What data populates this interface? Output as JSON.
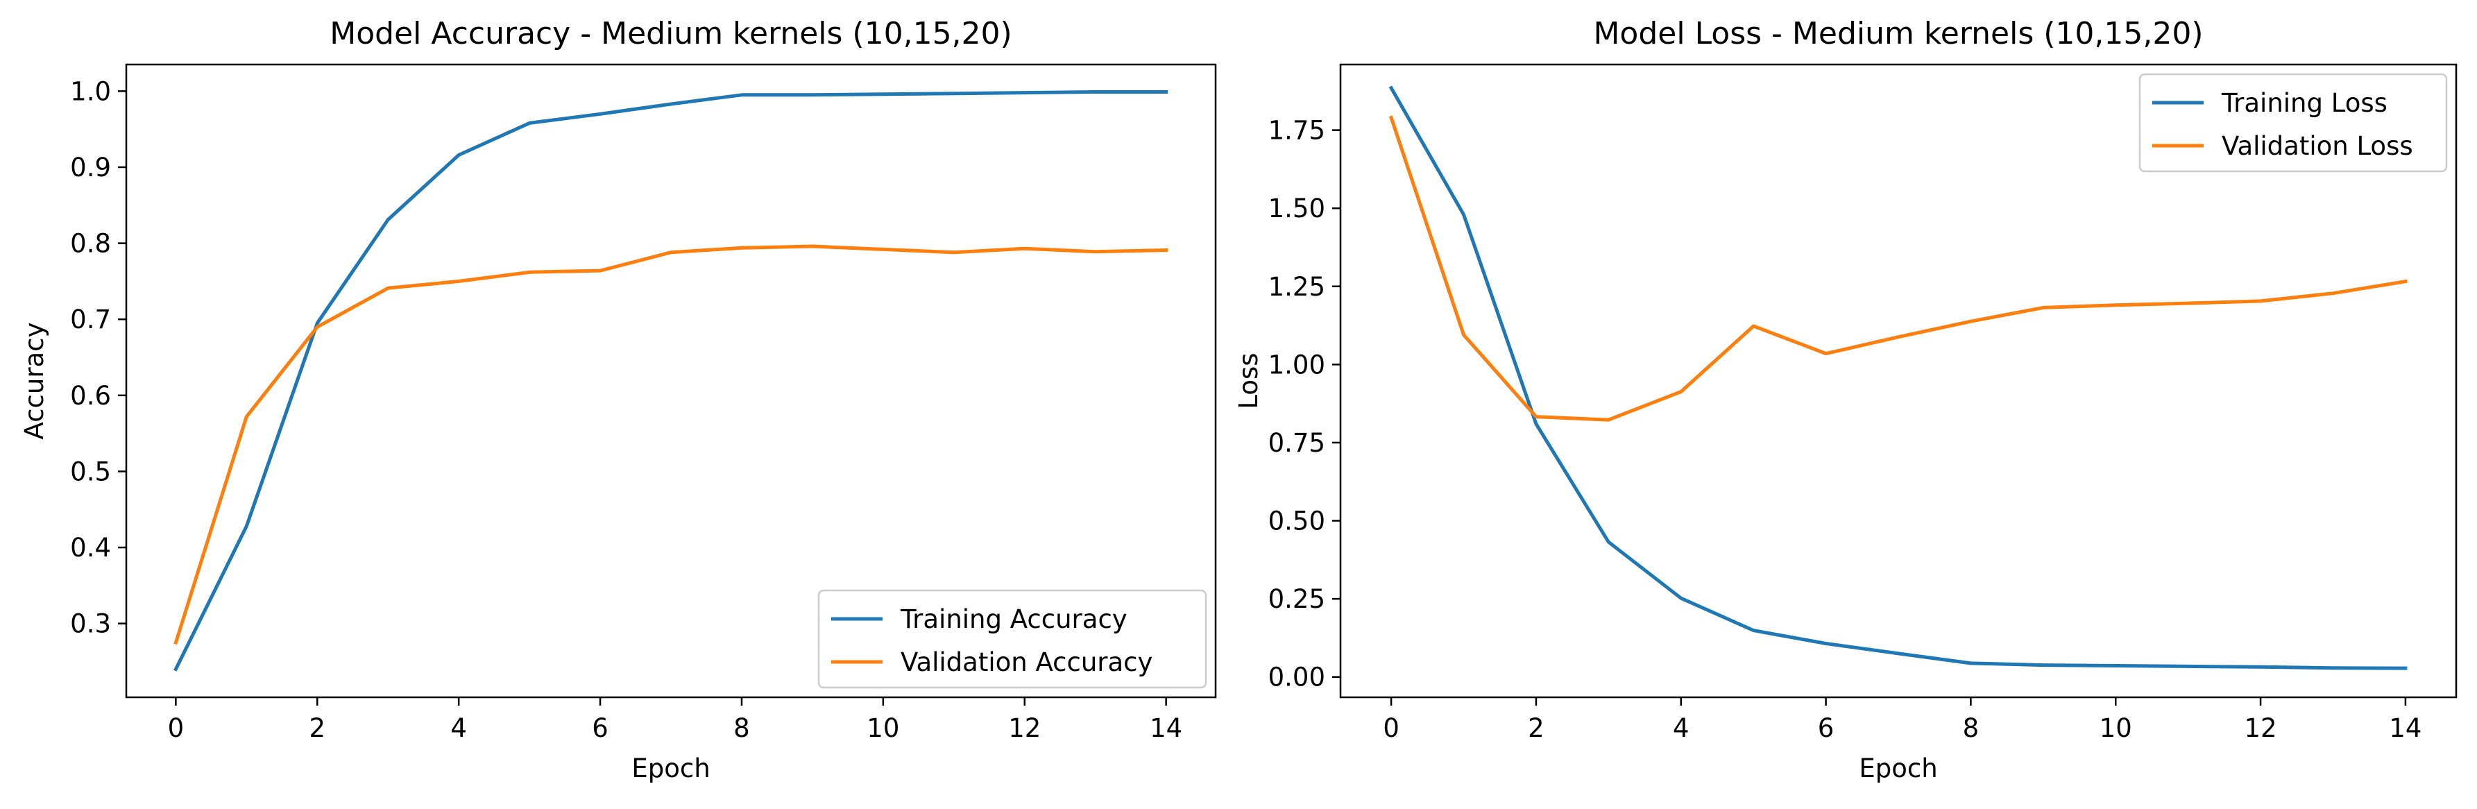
{
  "chart_data": [
    {
      "type": "line",
      "title": "Model Accuracy - Medium kernels (10,15,20)",
      "xlabel": "Epoch",
      "ylabel": "Accuracy",
      "xlim": [
        -0.7,
        14.7
      ],
      "ylim": [
        0.203,
        1.035
      ],
      "xticks": [
        0,
        2,
        4,
        6,
        8,
        10,
        12,
        14
      ],
      "yticks": [
        0.3,
        0.4,
        0.5,
        0.6,
        0.7,
        0.8,
        0.9,
        1.0
      ],
      "ytick_labels": [
        "0.3",
        "0.4",
        "0.5",
        "0.6",
        "0.7",
        "0.8",
        "0.9",
        "1.0"
      ],
      "grid": false,
      "legend_position": "lower-right",
      "x": [
        0,
        1,
        2,
        3,
        4,
        5,
        6,
        7,
        8,
        9,
        10,
        11,
        12,
        13,
        14
      ],
      "series": [
        {
          "name": "Training Accuracy",
          "color": "#1f77b4",
          "values": [
            0.24,
            0.428,
            0.695,
            0.831,
            0.916,
            0.958,
            0.97,
            0.983,
            0.995,
            0.995,
            0.996,
            0.997,
            0.998,
            0.999,
            0.999
          ]
        },
        {
          "name": "Validation Accuracy",
          "color": "#ff7f0e",
          "values": [
            0.275,
            0.572,
            0.69,
            0.741,
            0.75,
            0.762,
            0.764,
            0.788,
            0.794,
            0.796,
            0.792,
            0.788,
            0.793,
            0.789,
            0.791
          ]
        }
      ]
    },
    {
      "type": "line",
      "title": "Model Loss - Medium kernels (10,15,20)",
      "xlabel": "Epoch",
      "ylabel": "Loss",
      "xlim": [
        -0.7,
        14.7
      ],
      "ylim": [
        -0.065,
        1.96
      ],
      "xticks": [
        0,
        2,
        4,
        6,
        8,
        10,
        12,
        14
      ],
      "yticks": [
        0,
        0.25,
        0.5,
        0.75,
        1.0,
        1.25,
        1.5,
        1.75
      ],
      "ytick_labels": [
        "0.00",
        "0.25",
        "0.50",
        "0.75",
        "1.00",
        "1.25",
        "1.50",
        "1.75"
      ],
      "grid": false,
      "legend_position": "upper-right",
      "x": [
        0,
        1,
        2,
        3,
        4,
        5,
        6,
        7,
        8,
        9,
        10,
        11,
        12,
        13,
        14
      ],
      "series": [
        {
          "name": "Training Loss",
          "color": "#1f77b4",
          "values": [
            1.885,
            1.48,
            0.81,
            0.432,
            0.252,
            0.149,
            0.107,
            0.075,
            0.044,
            0.038,
            0.036,
            0.034,
            0.032,
            0.029,
            0.028
          ]
        },
        {
          "name": "Validation Loss",
          "color": "#ff7f0e",
          "values": [
            1.79,
            1.095,
            0.833,
            0.823,
            0.913,
            1.123,
            1.035,
            1.088,
            1.138,
            1.182,
            1.19,
            1.196,
            1.203,
            1.228,
            1.266
          ]
        }
      ]
    }
  ]
}
